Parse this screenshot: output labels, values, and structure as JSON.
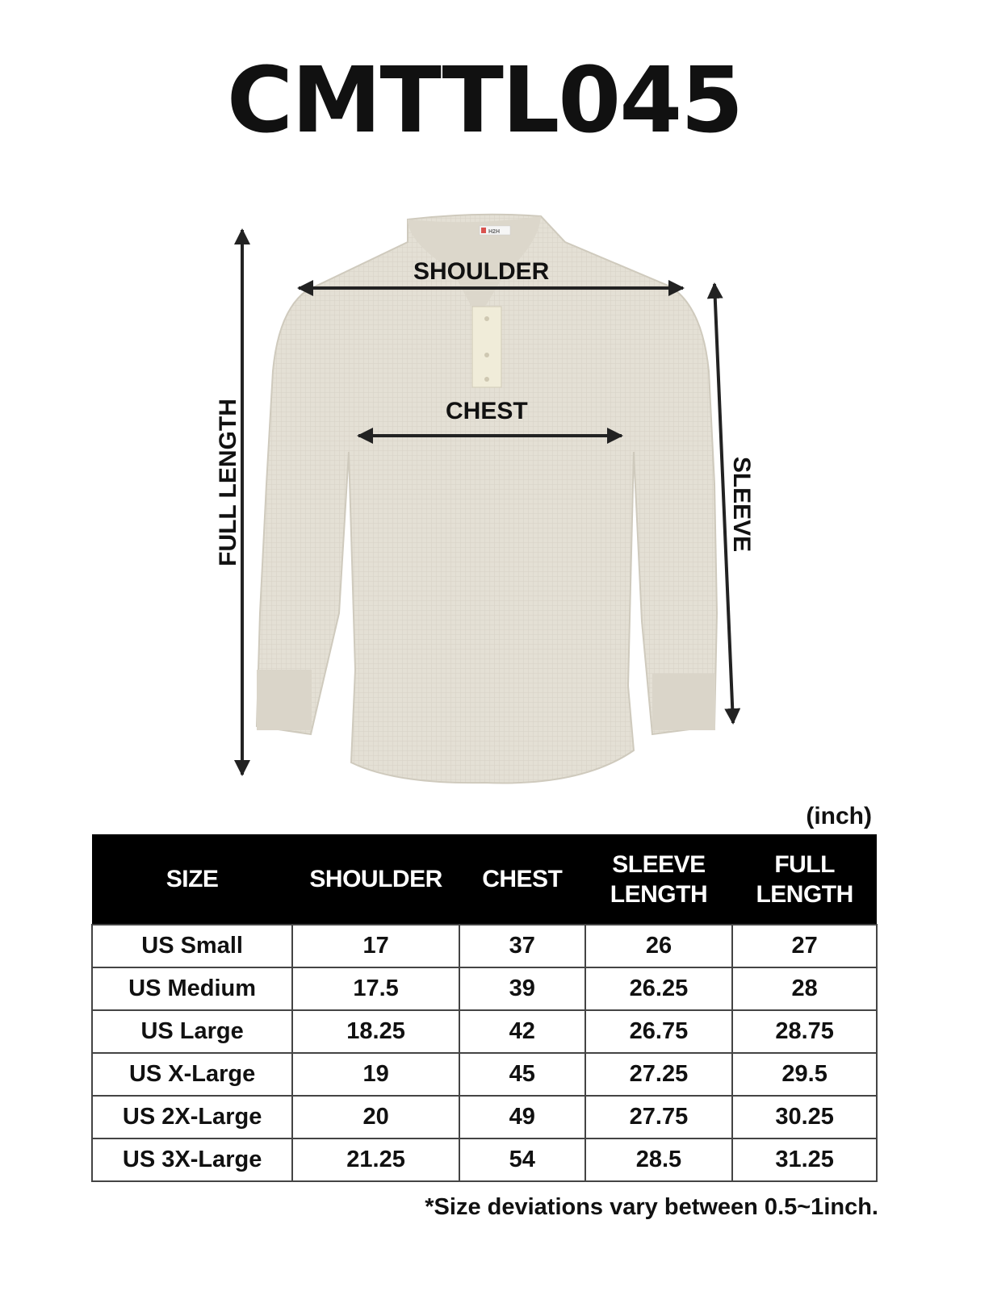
{
  "title": "CMTTL045",
  "brand_tag": "H2H",
  "diagram": {
    "shoulder_label": "SHOULDER",
    "chest_label": "CHEST",
    "full_length_label": "FULL LENGTH",
    "sleeve_label": "SLEEVE",
    "shirt_color": "#e4e0d5"
  },
  "unit": "(inch)",
  "table": {
    "headers": [
      "SIZE",
      "SHOULDER",
      "CHEST",
      "SLEEVE\nLENGTH",
      "FULL\nLENGTH"
    ],
    "rows": [
      [
        "US Small",
        "17",
        "37",
        "26",
        "27"
      ],
      [
        "US Medium",
        "17.5",
        "39",
        "26.25",
        "28"
      ],
      [
        "US Large",
        "18.25",
        "42",
        "26.75",
        "28.75"
      ],
      [
        "US X-Large",
        "19",
        "45",
        "27.25",
        "29.5"
      ],
      [
        "US 2X-Large",
        "20",
        "49",
        "27.75",
        "30.25"
      ],
      [
        "US 3X-Large",
        "21.25",
        "54",
        "28.5",
        "31.25"
      ]
    ]
  },
  "footnote": "*Size deviations vary between 0.5~1inch."
}
